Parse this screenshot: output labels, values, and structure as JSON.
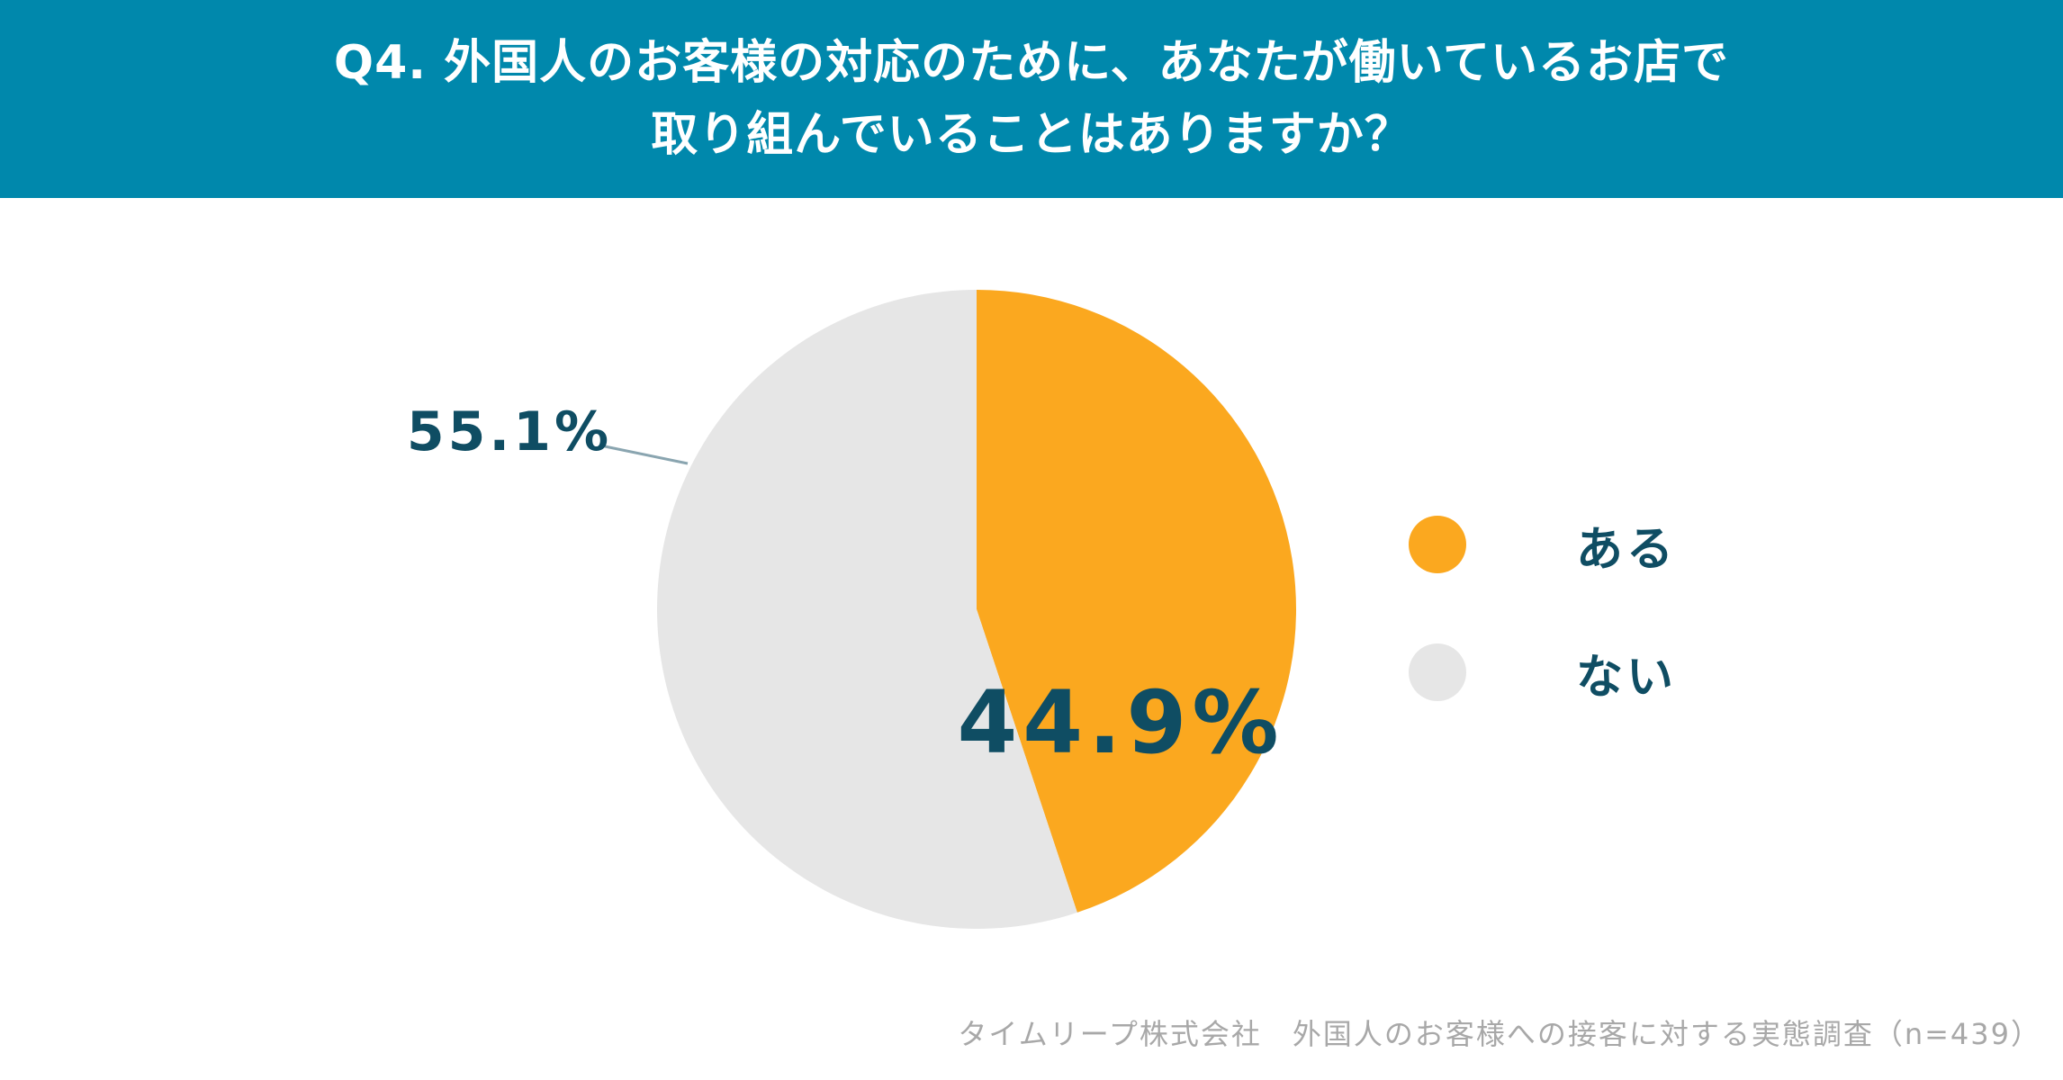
{
  "header": {
    "line1": "Q4. 外国人のお客様の対応のために、あなたが働いているお店で",
    "line2": "取り組んでいることはありますか？"
  },
  "chart_data": {
    "type": "pie",
    "title": "Q4. 外国人のお客様の対応のために、あなたが働いているお店で取り組んでいることはありますか？",
    "slices": [
      {
        "label": "ある",
        "value": 44.9,
        "display": "44.9%",
        "color": "#fba81f"
      },
      {
        "label": "ない",
        "value": 55.1,
        "display": "55.1%",
        "color": "#e6e6e6"
      }
    ],
    "start_angle": "12 o'clock",
    "direction": "clockwise",
    "legend_position": "right"
  },
  "colors": {
    "header_bg": "#0088ac",
    "label_text": "#0f4d63",
    "leader_line": "#8aa5b0",
    "source_text": "#a8a8a8"
  },
  "source": "タイムリープ株式会社　外国人のお客様への接客に対する実態調査（n=439）"
}
